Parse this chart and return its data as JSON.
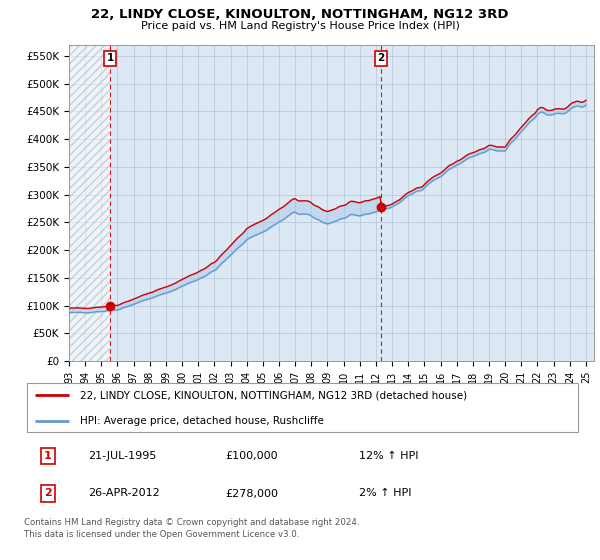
{
  "title": "22, LINDY CLOSE, KINOULTON, NOTTINGHAM, NG12 3RD",
  "subtitle": "Price paid vs. HM Land Registry's House Price Index (HPI)",
  "ylim": [
    0,
    570000
  ],
  "yticks": [
    0,
    50000,
    100000,
    150000,
    200000,
    250000,
    300000,
    350000,
    400000,
    450000,
    500000,
    550000
  ],
  "ytick_labels": [
    "£0",
    "£50K",
    "£100K",
    "£150K",
    "£200K",
    "£250K",
    "£300K",
    "£350K",
    "£400K",
    "£450K",
    "£500K",
    "£550K"
  ],
  "sale1_date": 1995.55,
  "sale1_price": 100000,
  "sale2_date": 2012.32,
  "sale2_price": 278000,
  "legend_line1": "22, LINDY CLOSE, KINOULTON, NOTTINGHAM, NG12 3RD (detached house)",
  "legend_line2": "HPI: Average price, detached house, Rushcliffe",
  "table_row1": [
    "1",
    "21-JUL-1995",
    "£100,000",
    "12% ↑ HPI"
  ],
  "table_row2": [
    "2",
    "26-APR-2012",
    "£278,000",
    "2% ↑ HPI"
  ],
  "footer": "Contains HM Land Registry data © Crown copyright and database right 2024.\nThis data is licensed under the Open Government Licence v3.0.",
  "red_color": "#cc0000",
  "blue_color": "#6699cc",
  "plot_bg": "#dce9f5",
  "grid_color": "#b0c4d8"
}
